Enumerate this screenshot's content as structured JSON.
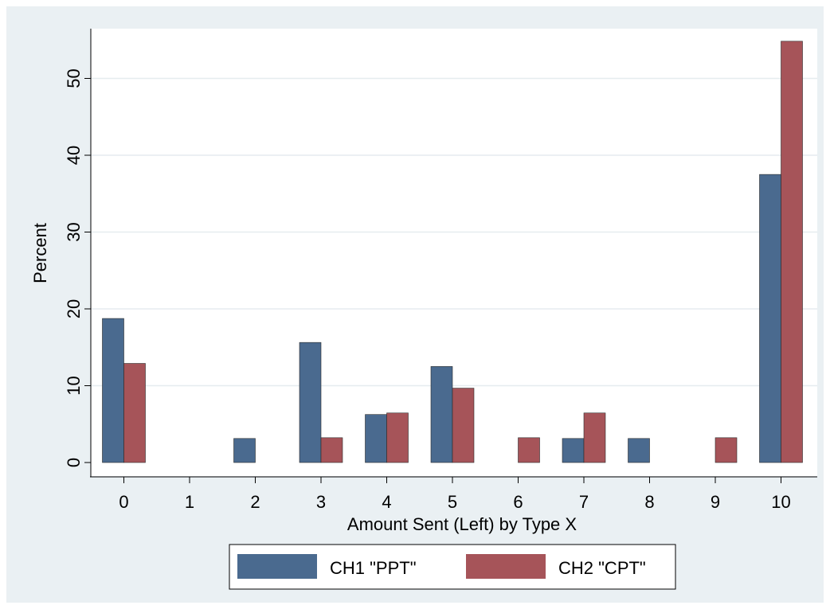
{
  "chart_data": {
    "type": "bar",
    "title": "",
    "xlabel": "Amount Sent (Left) by Type X",
    "ylabel": "Percent",
    "categories": [
      "0",
      "1",
      "2",
      "3",
      "4",
      "5",
      "6",
      "7",
      "8",
      "9",
      "10"
    ],
    "ylim": [
      0,
      55
    ],
    "yticks": [
      0,
      10,
      20,
      30,
      40,
      50
    ],
    "grid": true,
    "legend_position": "bottom",
    "series": [
      {
        "name": "CH1 \"PPT\"",
        "color": "#4a6a8f",
        "values": [
          18.75,
          0,
          3.13,
          15.63,
          6.25,
          12.5,
          0,
          3.13,
          3.13,
          0,
          37.5
        ]
      },
      {
        "name": "CH2 \"CPT\"",
        "color": "#a65459",
        "values": [
          12.9,
          0,
          0,
          3.23,
          6.45,
          9.68,
          3.23,
          6.45,
          0,
          3.23,
          54.84
        ]
      }
    ]
  },
  "colors": {
    "outer_background": "#eaf0f3",
    "plot_background": "#ffffff",
    "gridline": "#e6ecef"
  }
}
